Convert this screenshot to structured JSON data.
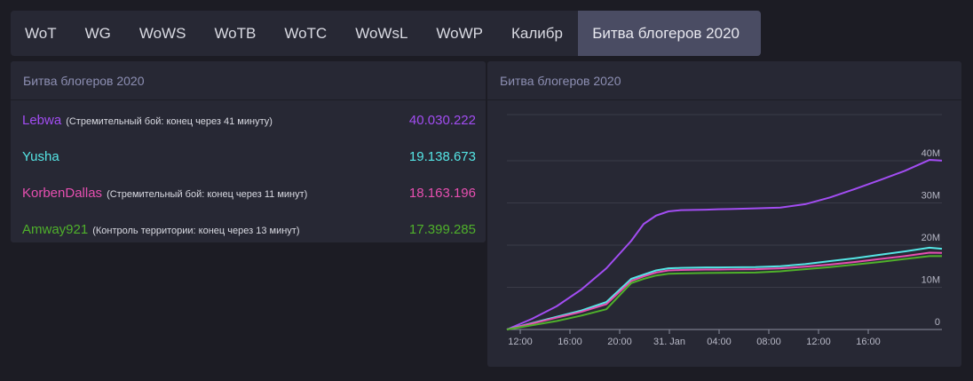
{
  "tabs": [
    "WoT",
    "WG",
    "WoWS",
    "WoTB",
    "WoTC",
    "WoWsL",
    "WoWP",
    "Калибр",
    "Битва блогеров 2020"
  ],
  "active_tab": "Битва блогеров 2020",
  "left_panel": {
    "title": "Битва блогеров 2020",
    "rows": [
      {
        "name": "Lebwa",
        "status": "(Стремительный бой: конец через 41 минуту)",
        "value": "40.030.222",
        "color": "#a24df2"
      },
      {
        "name": "Yusha",
        "status": "",
        "value": "19.138.673",
        "color": "#55e6e6"
      },
      {
        "name": "KorbenDallas",
        "status": "(Стремительный бой: конец через 11 минут)",
        "value": "18.163.196",
        "color": "#e64fb0"
      },
      {
        "name": "Amway921",
        "status": "(Контроль территории: конец через 13 минут)",
        "value": "17.399.285",
        "color": "#4fb02b"
      }
    ]
  },
  "right_panel": {
    "title": "Битва блогеров 2020"
  },
  "chart_data": {
    "type": "line",
    "x_tick_labels": [
      "12:00",
      "16:00",
      "20:00",
      "31. Jan",
      "04:00",
      "08:00",
      "12:00",
      "16:00"
    ],
    "y_tick_labels": [
      "0",
      "10M",
      "20M",
      "30M",
      "40M"
    ],
    "x_hours": [
      0,
      2,
      4,
      6,
      8,
      10,
      11,
      12,
      13,
      14,
      15,
      16,
      17,
      18,
      20,
      22,
      24,
      26,
      28,
      30,
      32,
      34,
      35
    ],
    "ylim": [
      0,
      40000000
    ],
    "grid": true,
    "series": [
      {
        "color": "#a24df2",
        "values": [
          0,
          2500000.0,
          5500000.0,
          9500000.0,
          14500000.0,
          21000000.0,
          25000000.0,
          27000000.0,
          28000000.0,
          28300000.0,
          28350000.0,
          28400000.0,
          28500000.0,
          28550000.0,
          28700000.0,
          28900000.0,
          29700000.0,
          31300000.0,
          33300000.0,
          35400000.0,
          37600000.0,
          40200000.0,
          40030000.0
        ]
      },
      {
        "color": "#55e6e6",
        "values": [
          0,
          1500000.0,
          3000000.0,
          4500000.0,
          6500000.0,
          12000000.0,
          13000000.0,
          14000000.0,
          14500000.0,
          14600000.0,
          14650000.0,
          14700000.0,
          14720000.0,
          14750000.0,
          14800000.0,
          15000000.0,
          15500000.0,
          16200000.0,
          16900000.0,
          17700000.0,
          18500000.0,
          19400000.0,
          19140000.0
        ]
      },
      {
        "color": "#e64fb0",
        "values": [
          0,
          1400000.0,
          2800000.0,
          4200000.0,
          6000000.0,
          11500000.0,
          12600000.0,
          13500000.0,
          14000000.0,
          14100000.0,
          14150000.0,
          14200000.0,
          14220000.0,
          14250000.0,
          14300000.0,
          14500000.0,
          14900000.0,
          15400000.0,
          16000000.0,
          16700000.0,
          17400000.0,
          18200000.0,
          18160000.0
        ]
      },
      {
        "color": "#4fb02b",
        "values": [
          0,
          1000000.0,
          2000000.0,
          3300000.0,
          4800000.0,
          11000000.0,
          12000000.0,
          12800000.0,
          13200000.0,
          13300000.0,
          13350000.0,
          13400000.0,
          13420000.0,
          13450000.0,
          13500000.0,
          13800000.0,
          14300000.0,
          14800000.0,
          15400000.0,
          16000000.0,
          16700000.0,
          17400000.0,
          17400000.0
        ]
      }
    ]
  }
}
